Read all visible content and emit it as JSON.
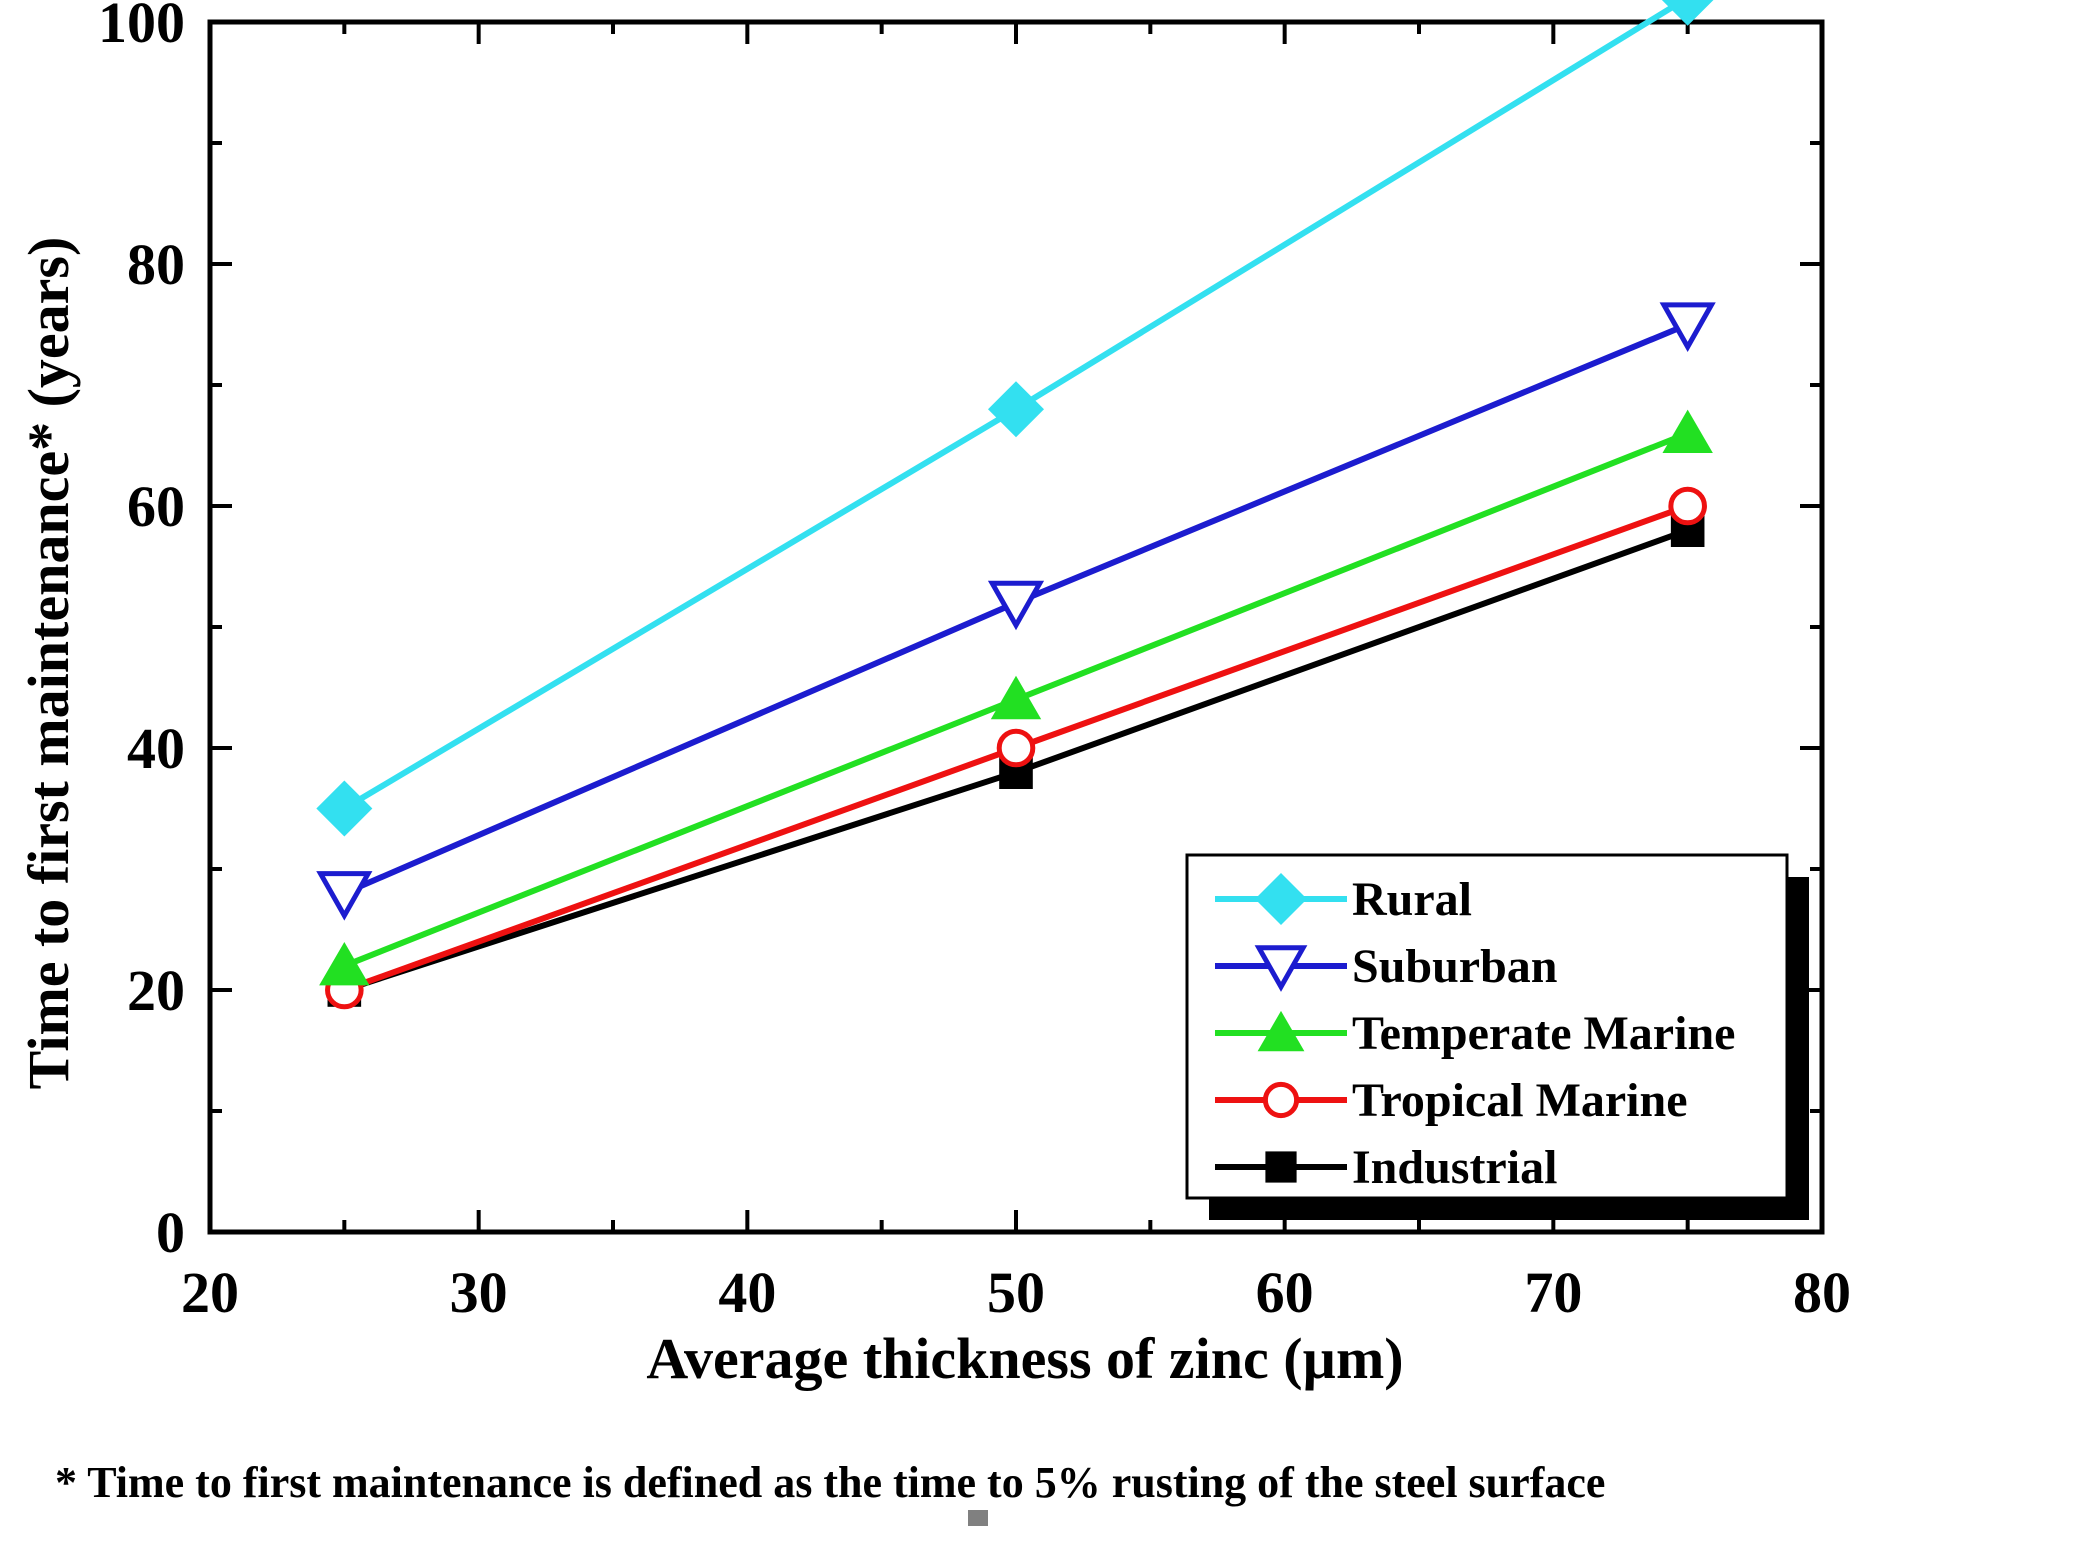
{
  "chart_data": {
    "type": "line",
    "title": "",
    "xlabel": "Average thickness of zinc (µm)",
    "ylabel": "Time to first maintenance* (years)",
    "xlim": [
      20,
      80
    ],
    "ylim": [
      0,
      100
    ],
    "xticks": [
      20,
      30,
      40,
      50,
      60,
      70,
      80
    ],
    "yticks": [
      0,
      20,
      40,
      60,
      80,
      100
    ],
    "x": [
      25,
      50,
      75
    ],
    "legend_position": "bottom-right",
    "series": [
      {
        "name": "Rural",
        "values": [
          35,
          68,
          102
        ],
        "color": "#33e0f0",
        "marker": "diamond"
      },
      {
        "name": "Suburban",
        "values": [
          28,
          52,
          75
        ],
        "color": "#1c1ccf",
        "marker": "triangle-down-open"
      },
      {
        "name": "Temperate Marine",
        "values": [
          22,
          44,
          66
        ],
        "color": "#22e022",
        "marker": "triangle-up"
      },
      {
        "name": "Tropical Marine",
        "values": [
          20,
          40,
          60
        ],
        "color": "#ee1111",
        "marker": "circle-open"
      },
      {
        "name": "Industrial",
        "values": [
          20,
          38,
          58
        ],
        "color": "#000000",
        "marker": "square"
      }
    ]
  },
  "footnote": "* Time to first maintenance is defined as the time to 5% rusting of the steel surface"
}
